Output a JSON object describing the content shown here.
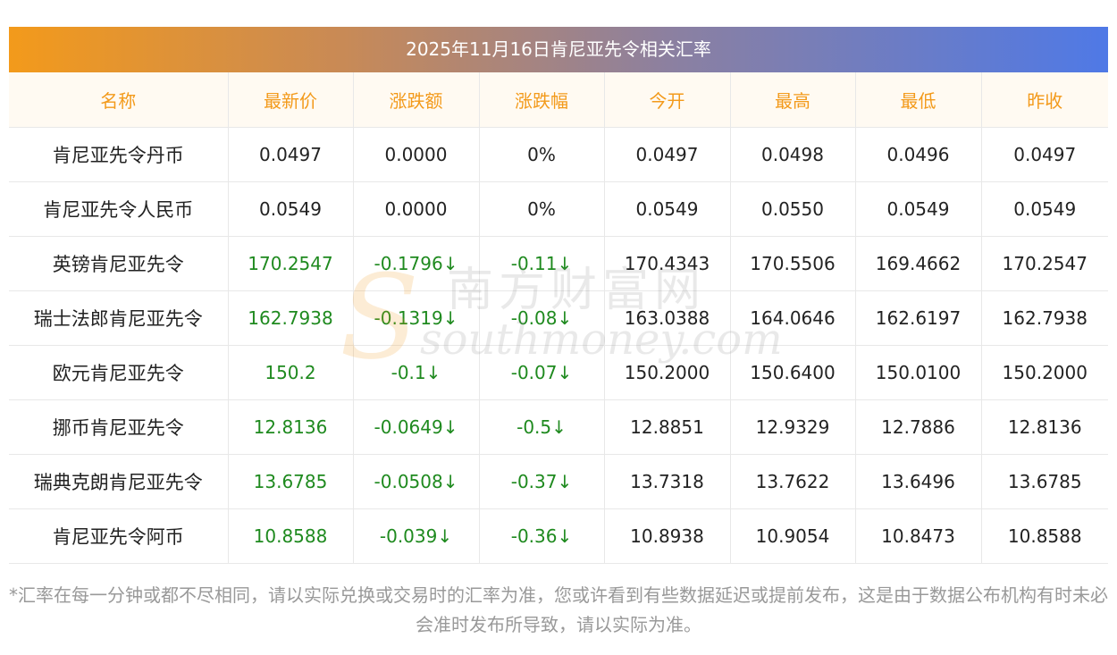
{
  "title": "2025年11月16日肯尼亚先令相关汇率",
  "columns": [
    "名称",
    "最新价",
    "涨跌额",
    "涨跌幅",
    "今开",
    "最高",
    "最低",
    "昨收"
  ],
  "rows": [
    {
      "name": "肯尼亚先令丹币",
      "latest": "0.0497",
      "change": "0.0000",
      "change_pct": "0%",
      "open": "0.0497",
      "high": "0.0498",
      "low": "0.0496",
      "prev_close": "0.0497"
    },
    {
      "name": "肯尼亚先令人民币",
      "latest": "0.0549",
      "change": "0.0000",
      "change_pct": "0%",
      "open": "0.0549",
      "high": "0.0550",
      "low": "0.0549",
      "prev_close": "0.0549"
    },
    {
      "name": "英镑肯尼亚先令",
      "latest": "170.2547",
      "change": "-0.1796↓",
      "change_pct": "-0.11↓",
      "open": "170.4343",
      "high": "170.5506",
      "low": "169.4662",
      "prev_close": "170.2547"
    },
    {
      "name": "瑞士法郎肯尼亚先令",
      "latest": "162.7938",
      "change": "-0.1319↓",
      "change_pct": "-0.08↓",
      "open": "163.0388",
      "high": "164.0646",
      "low": "162.6197",
      "prev_close": "162.7938"
    },
    {
      "name": "欧元肯尼亚先令",
      "latest": "150.2",
      "change": "-0.1↓",
      "change_pct": "-0.07↓",
      "open": "150.2000",
      "high": "150.6400",
      "low": "150.0100",
      "prev_close": "150.2000"
    },
    {
      "name": "挪币肯尼亚先令",
      "latest": "12.8136",
      "change": "-0.0649↓",
      "change_pct": "-0.5↓",
      "open": "12.8851",
      "high": "12.9329",
      "low": "12.7886",
      "prev_close": "12.8136"
    },
    {
      "name": "瑞典克朗肯尼亚先令",
      "latest": "13.6785",
      "change": "-0.0508↓",
      "change_pct": "-0.37↓",
      "open": "13.7318",
      "high": "13.7622",
      "low": "13.6496",
      "prev_close": "13.6785"
    },
    {
      "name": "肯尼亚先令阿币",
      "latest": "10.8588",
      "change": "-0.039↓",
      "change_pct": "-0.36↓",
      "open": "10.8938",
      "high": "10.9054",
      "low": "10.8473",
      "prev_close": "10.8588"
    }
  ],
  "note": "*汇率在每一分钟或都不尽相同，请以实际兑换或交易时的汇率为准，您或许看到有些数据延迟或提前发布，这是由于数据公布机构有时未必会准时发布所导致，请以实际为准。",
  "watermark": {
    "cn": "南方财富网",
    "en": "southmoney.com"
  },
  "colors": {
    "header_text": "#f39a1b",
    "down": "#1f8a1f",
    "gradient_start": "#f39a1b",
    "gradient_end": "#4f79e6"
  }
}
